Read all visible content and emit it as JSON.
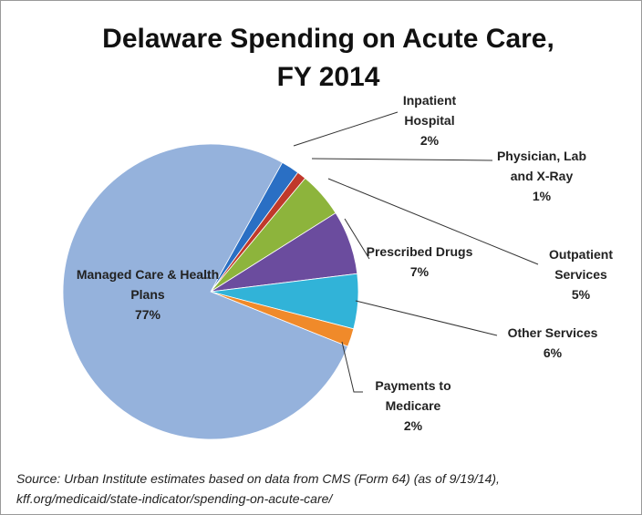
{
  "chart_data": {
    "type": "pie",
    "title": "Delaware Spending on Acute Care, FY 2014",
    "categories": [
      "Inpatient Hospital",
      "Physician, Lab and X-Ray",
      "Outpatient Services",
      "Prescribed Drugs",
      "Other Services",
      "Payments to Medicare",
      "Managed Care & Health Plans"
    ],
    "values": [
      2,
      1,
      5,
      7,
      6,
      2,
      77
    ],
    "value_labels": [
      "2%",
      "1%",
      "5%",
      "7%",
      "6%",
      "2%",
      "77%"
    ],
    "colors": [
      "#2a6fc4",
      "#c0392b",
      "#8db43c",
      "#6b4c9e",
      "#31b3d8",
      "#f08a2a",
      "#95b2dc"
    ],
    "source": "Source: Urban Institute estimates based on data from CMS (Form 64) (as of 9/19/14), kff.org/medicaid/state-indicator/spending-on-acute-care/"
  }
}
